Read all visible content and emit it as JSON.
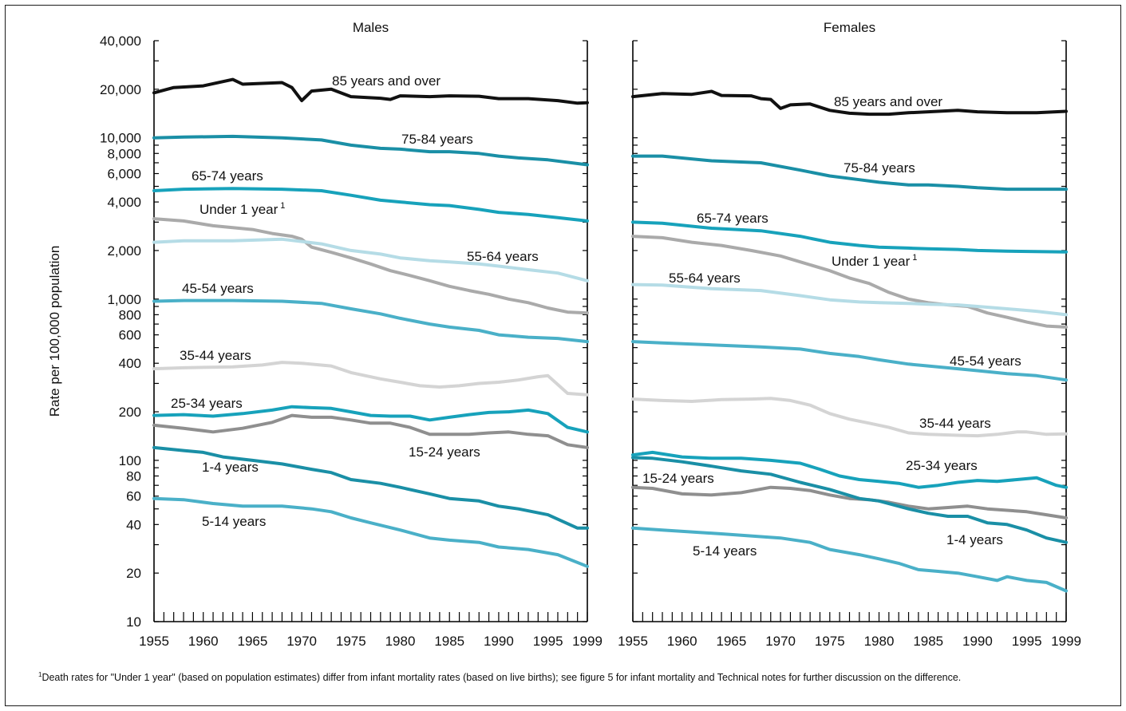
{
  "chart_data": [
    {
      "type": "line",
      "title": "Males",
      "ylabel": "Rate per 100,000 population",
      "yscale": "log",
      "ylim": [
        10,
        40000
      ],
      "xlim": [
        1955,
        1999
      ],
      "y_tick_labels": [
        "40,000",
        "20,000",
        "10,000",
        "8,000",
        "6,000",
        "4,000",
        "2,000",
        "1,000",
        "800",
        "600",
        "400",
        "200",
        "100",
        "80",
        "60",
        "40",
        "20",
        "10"
      ],
      "x_tick_labels": [
        "1955",
        "1960",
        "1965",
        "1970",
        "1975",
        "1980",
        "1985",
        "1990",
        "1995",
        "1999"
      ],
      "series": [
        {
          "name": "85 years and over",
          "color": "#111111",
          "x": [
            1955,
            1957,
            1960,
            1963,
            1964,
            1968,
            1969,
            1970,
            1971,
            1973,
            1975,
            1978,
            1979,
            1980,
            1983,
            1985,
            1988,
            1990,
            1993,
            1996,
            1998,
            1999
          ],
          "values": [
            19000,
            20500,
            21000,
            23000,
            21500,
            22000,
            20500,
            17000,
            19500,
            20000,
            18000,
            17600,
            17300,
            18200,
            18000,
            18200,
            18100,
            17500,
            17500,
            17000,
            16400,
            16500
          ]
        },
        {
          "name": "75-84 years",
          "color": "#1a8fa6",
          "x": [
            1955,
            1958,
            1963,
            1968,
            1972,
            1975,
            1978,
            1980,
            1983,
            1985,
            1988,
            1990,
            1992,
            1995,
            1999
          ],
          "values": [
            10000,
            10100,
            10200,
            10000,
            9700,
            9000,
            8600,
            8500,
            8200,
            8200,
            8000,
            7700,
            7500,
            7300,
            6800
          ]
        },
        {
          "name": "65-74 years",
          "color": "#17a2bb",
          "x": [
            1955,
            1958,
            1963,
            1968,
            1972,
            1975,
            1978,
            1980,
            1983,
            1985,
            1988,
            1990,
            1993,
            1996,
            1999
          ],
          "values": [
            4700,
            4800,
            4850,
            4800,
            4700,
            4400,
            4100,
            4000,
            3850,
            3800,
            3600,
            3450,
            3350,
            3200,
            3050
          ]
        },
        {
          "name": "Under 1 year",
          "color": "#aaaaaa",
          "x": [
            1955,
            1958,
            1961,
            1965,
            1967,
            1969,
            1970,
            1971,
            1973,
            1975,
            1977,
            1979,
            1981,
            1983,
            1985,
            1987,
            1989,
            1991,
            1993,
            1995,
            1997,
            1999
          ],
          "values": [
            3150,
            3050,
            2850,
            2700,
            2550,
            2450,
            2350,
            2100,
            1950,
            1800,
            1650,
            1500,
            1400,
            1300,
            1200,
            1130,
            1070,
            1000,
            950,
            880,
            830,
            820
          ]
        },
        {
          "name": "55-64 years",
          "color": "#b5dce6",
          "x": [
            1955,
            1958,
            1963,
            1968,
            1972,
            1975,
            1978,
            1980,
            1983,
            1985,
            1988,
            1990,
            1993,
            1996,
            1999
          ],
          "values": [
            2250,
            2300,
            2300,
            2350,
            2200,
            2000,
            1900,
            1800,
            1730,
            1700,
            1650,
            1600,
            1520,
            1450,
            1300
          ]
        },
        {
          "name": "45-54 years",
          "color": "#4ab0c8",
          "x": [
            1955,
            1958,
            1963,
            1968,
            1972,
            1975,
            1978,
            1980,
            1983,
            1985,
            1988,
            1990,
            1993,
            1996,
            1999
          ],
          "values": [
            970,
            980,
            980,
            970,
            940,
            870,
            810,
            760,
            700,
            670,
            640,
            600,
            580,
            570,
            545
          ]
        },
        {
          "name": "35-44 years",
          "color": "#d4d4d4",
          "x": [
            1955,
            1958,
            1963,
            1966,
            1968,
            1970,
            1973,
            1975,
            1978,
            1980,
            1982,
            1984,
            1986,
            1988,
            1990,
            1992,
            1994,
            1995,
            1997,
            1999
          ],
          "values": [
            370,
            375,
            380,
            390,
            405,
            400,
            385,
            350,
            320,
            305,
            290,
            285,
            290,
            300,
            305,
            315,
            330,
            335,
            260,
            255
          ]
        },
        {
          "name": "25-34 years",
          "color": "#17a2bb",
          "x": [
            1955,
            1958,
            1961,
            1964,
            1967,
            1969,
            1971,
            1973,
            1975,
            1977,
            1979,
            1981,
            1983,
            1985,
            1987,
            1989,
            1991,
            1993,
            1995,
            1997,
            1999
          ],
          "values": [
            190,
            192,
            188,
            195,
            205,
            215,
            212,
            210,
            200,
            190,
            188,
            188,
            178,
            185,
            192,
            198,
            200,
            205,
            195,
            160,
            150
          ]
        },
        {
          "name": "15-24 years",
          "color": "#8f8f8f",
          "x": [
            1955,
            1958,
            1961,
            1964,
            1967,
            1969,
            1971,
            1973,
            1975,
            1977,
            1979,
            1981,
            1983,
            1985,
            1987,
            1989,
            1991,
            1993,
            1995,
            1997,
            1999
          ],
          "values": [
            165,
            158,
            150,
            158,
            172,
            190,
            185,
            185,
            178,
            170,
            170,
            160,
            145,
            145,
            145,
            148,
            150,
            145,
            142,
            125,
            120
          ]
        },
        {
          "name": "1-4 years",
          "color": "#1a8fa6",
          "x": [
            1955,
            1958,
            1960,
            1962,
            1965,
            1968,
            1971,
            1973,
            1975,
            1978,
            1980,
            1983,
            1985,
            1988,
            1990,
            1992,
            1995,
            1998,
            1999
          ],
          "values": [
            120,
            115,
            112,
            105,
            100,
            95,
            88,
            84,
            76,
            72,
            68,
            62,
            58,
            56,
            52,
            50,
            46,
            38,
            38
          ]
        },
        {
          "name": "5-14 years",
          "color": "#4ab0c8",
          "x": [
            1955,
            1958,
            1961,
            1964,
            1968,
            1971,
            1973,
            1975,
            1977,
            1980,
            1983,
            1985,
            1988,
            1990,
            1993,
            1996,
            1999
          ],
          "values": [
            58,
            57,
            54,
            52,
            52,
            50,
            48,
            44,
            41,
            37,
            33,
            32,
            31,
            29,
            28,
            26,
            22
          ]
        }
      ],
      "annotations": [
        "85 years and over",
        "75-84 years",
        "65-74 years",
        "Under 1 year",
        "55-64 years",
        "45-54 years",
        "35-44 years",
        "25-34 years",
        "15-24 years",
        "1-4 years",
        "5-14 years"
      ]
    },
    {
      "type": "line",
      "title": "Females",
      "yscale": "log",
      "ylim": [
        10,
        40000
      ],
      "xlim": [
        1955,
        1999
      ],
      "x_tick_labels": [
        "1955",
        "1960",
        "1965",
        "1970",
        "1975",
        "1980",
        "1985",
        "1990",
        "1995",
        "1999"
      ],
      "series": [
        {
          "name": "85 years and over",
          "color": "#111111",
          "x": [
            1955,
            1958,
            1961,
            1963,
            1964,
            1967,
            1968,
            1969,
            1970,
            1971,
            1973,
            1975,
            1977,
            1979,
            1981,
            1983,
            1985,
            1988,
            1990,
            1993,
            1996,
            1999
          ],
          "values": [
            18000,
            18800,
            18600,
            19400,
            18300,
            18200,
            17500,
            17300,
            15200,
            16000,
            16200,
            14800,
            14200,
            14000,
            14000,
            14300,
            14500,
            14800,
            14500,
            14300,
            14300,
            14600
          ]
        },
        {
          "name": "75-84 years",
          "color": "#1a8fa6",
          "x": [
            1955,
            1958,
            1963,
            1968,
            1972,
            1975,
            1978,
            1980,
            1983,
            1985,
            1988,
            1990,
            1993,
            1996,
            1999
          ],
          "values": [
            7700,
            7700,
            7200,
            7000,
            6300,
            5800,
            5500,
            5300,
            5100,
            5100,
            5000,
            4900,
            4800,
            4800,
            4800
          ]
        },
        {
          "name": "65-74 years",
          "color": "#17a2bb",
          "x": [
            1955,
            1958,
            1963,
            1968,
            1972,
            1975,
            1978,
            1980,
            1983,
            1985,
            1988,
            1990,
            1993,
            1996,
            1999
          ],
          "values": [
            3000,
            2950,
            2750,
            2650,
            2450,
            2250,
            2150,
            2100,
            2070,
            2050,
            2030,
            2000,
            1980,
            1970,
            1960
          ]
        },
        {
          "name": "Under 1 year",
          "color": "#aaaaaa",
          "x": [
            1955,
            1958,
            1961,
            1964,
            1967,
            1970,
            1972,
            1975,
            1977,
            1979,
            1981,
            1983,
            1985,
            1987,
            1989,
            1991,
            1993,
            1995,
            1997,
            1999
          ],
          "values": [
            2450,
            2400,
            2250,
            2150,
            2000,
            1850,
            1700,
            1500,
            1350,
            1250,
            1100,
            1000,
            950,
            920,
            900,
            820,
            770,
            720,
            680,
            670
          ]
        },
        {
          "name": "55-64 years",
          "color": "#b5dce6",
          "x": [
            1955,
            1958,
            1963,
            1968,
            1972,
            1975,
            1978,
            1980,
            1983,
            1985,
            1988,
            1990,
            1993,
            1996,
            1999
          ],
          "values": [
            1230,
            1220,
            1160,
            1130,
            1050,
            990,
            960,
            950,
            940,
            930,
            920,
            900,
            870,
            840,
            800
          ]
        },
        {
          "name": "45-54 years",
          "color": "#4ab0c8",
          "x": [
            1955,
            1958,
            1963,
            1968,
            1972,
            1975,
            1978,
            1980,
            1983,
            1985,
            1988,
            1990,
            1993,
            1996,
            1999
          ],
          "values": [
            545,
            535,
            520,
            505,
            490,
            460,
            440,
            420,
            395,
            385,
            370,
            360,
            345,
            335,
            315
          ]
        },
        {
          "name": "35-44 years",
          "color": "#d4d4d4",
          "x": [
            1955,
            1958,
            1961,
            1964,
            1967,
            1969,
            1971,
            1973,
            1975,
            1977,
            1979,
            1981,
            1983,
            1985,
            1988,
            1990,
            1992,
            1994,
            1995,
            1997,
            1999
          ],
          "values": [
            240,
            235,
            232,
            238,
            240,
            242,
            235,
            220,
            195,
            180,
            170,
            160,
            148,
            145,
            143,
            142,
            145,
            150,
            150,
            145,
            146
          ]
        },
        {
          "name": "25-34 years",
          "color": "#17a2bb",
          "x": [
            1955,
            1957,
            1960,
            1963,
            1966,
            1969,
            1972,
            1974,
            1976,
            1978,
            1980,
            1982,
            1984,
            1986,
            1988,
            1990,
            1992,
            1994,
            1996,
            1998,
            1999
          ],
          "values": [
            108,
            112,
            105,
            103,
            103,
            100,
            96,
            88,
            80,
            76,
            74,
            72,
            68,
            70,
            73,
            75,
            74,
            76,
            78,
            70,
            68
          ]
        },
        {
          "name": "15-24 years",
          "color": "#8f8f8f",
          "x": [
            1955,
            1957,
            1960,
            1963,
            1966,
            1969,
            1971,
            1973,
            1975,
            1977,
            1979,
            1981,
            1983,
            1985,
            1987,
            1989,
            1991,
            1993,
            1995,
            1997,
            1999
          ],
          "values": [
            68,
            67,
            62,
            61,
            63,
            68,
            67,
            65,
            61,
            58,
            57,
            55,
            52,
            50,
            51,
            52,
            50,
            49,
            48,
            46,
            44
          ]
        },
        {
          "name": "1-4 years",
          "color": "#1a8fa6",
          "x": [
            1955,
            1957,
            1960,
            1963,
            1966,
            1969,
            1972,
            1975,
            1978,
            1980,
            1983,
            1985,
            1987,
            1989,
            1991,
            1993,
            1995,
            1997,
            1999
          ],
          "values": [
            104,
            103,
            98,
            92,
            86,
            82,
            73,
            66,
            58,
            56,
            50,
            47,
            45,
            45,
            41,
            40,
            37,
            33,
            31
          ]
        },
        {
          "name": "5-14 years",
          "color": "#4ab0c8",
          "x": [
            1955,
            1958,
            1961,
            1964,
            1967,
            1970,
            1973,
            1975,
            1978,
            1980,
            1982,
            1984,
            1986,
            1988,
            1990,
            1992,
            1993,
            1995,
            1997,
            1999
          ],
          "values": [
            38,
            37,
            36,
            35,
            34,
            33,
            31,
            28,
            26,
            24.5,
            23,
            21,
            20.5,
            20,
            19,
            18,
            19,
            18,
            17.5,
            15.5
          ]
        }
      ],
      "annotations": [
        "85 years and over",
        "75-84 years",
        "65-74 years",
        "Under 1 year",
        "55-64 years",
        "45-54 years",
        "35-44 years",
        "25-34 years",
        "15-24 years",
        "1-4 years",
        "5-14 years"
      ]
    }
  ],
  "footnote": {
    "marker": "1",
    "text": "Death rates for \"Under 1 year\" (based on population estimates) differ from infant mortality rates (based on live births); see figure 5 for infant mortality and Technical notes for further discussion on the difference."
  }
}
